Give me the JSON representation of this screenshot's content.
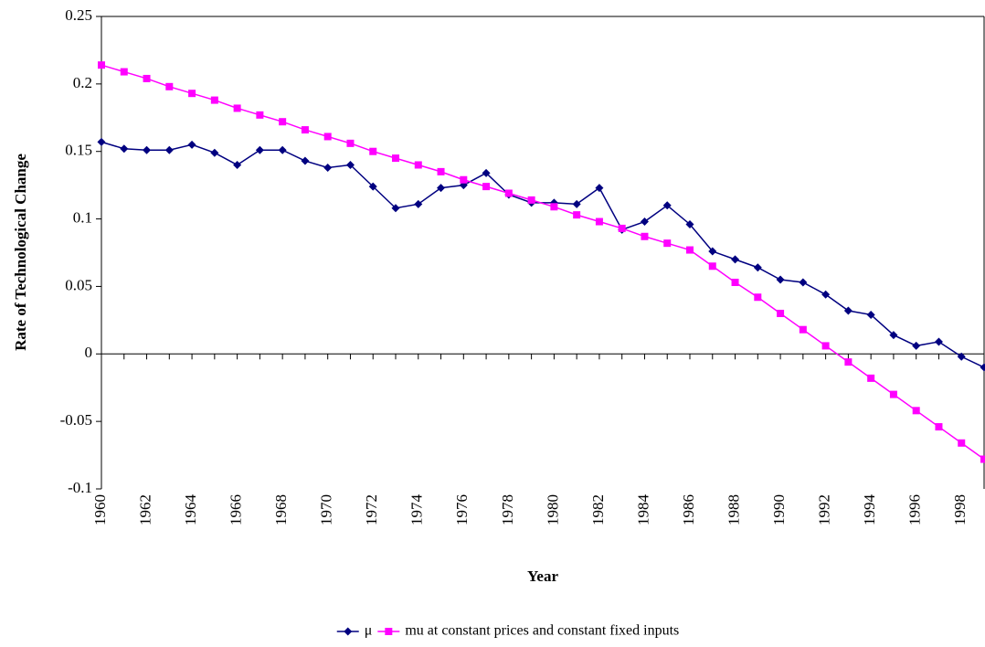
{
  "chart_data": {
    "type": "line",
    "y_label": "Rate of Technological Change",
    "x_label": "Year",
    "categories": [
      "1960",
      null,
      "1962",
      null,
      "1964",
      null,
      "1966",
      null,
      "1968",
      null,
      "1970",
      null,
      "1972",
      null,
      "1974",
      null,
      "1976",
      null,
      "1978",
      null,
      "1980",
      null,
      "1982",
      null,
      "1984",
      null,
      "1986",
      null,
      "1988",
      null,
      "1990",
      null,
      "1992",
      null,
      "1994",
      null,
      "1996",
      null,
      "1998",
      null
    ],
    "series": [
      {
        "name": "μ",
        "color": "#000080",
        "marker": "diamond",
        "values": [
          0.157,
          0.152,
          0.151,
          0.151,
          0.155,
          0.149,
          0.14,
          0.151,
          0.151,
          0.143,
          0.138,
          0.14,
          0.124,
          0.108,
          0.111,
          0.123,
          0.125,
          0.134,
          0.118,
          0.112,
          0.112,
          0.111,
          0.123,
          0.092,
          0.098,
          0.11,
          0.096,
          0.076,
          0.07,
          0.064,
          0.055,
          0.053,
          0.044,
          0.032,
          0.029,
          0.014,
          0.006,
          0.009,
          -0.002,
          -0.01
        ]
      },
      {
        "name": "mu at constant prices and constant fixed inputs",
        "color": "#ff00ff",
        "marker": "square",
        "values": [
          0.214,
          0.209,
          0.204,
          0.198,
          0.193,
          0.188,
          0.182,
          0.177,
          0.172,
          0.166,
          0.161,
          0.156,
          0.15,
          0.145,
          0.14,
          0.135,
          0.129,
          0.124,
          0.119,
          0.114,
          0.109,
          0.103,
          0.098,
          0.093,
          0.087,
          0.082,
          0.077,
          0.065,
          0.053,
          0.042,
          0.03,
          0.018,
          0.006,
          -0.006,
          -0.018,
          -0.03,
          -0.042,
          -0.054,
          -0.066,
          -0.078
        ]
      }
    ],
    "ylim": [
      -0.1,
      0.25
    ],
    "yticks": [
      -0.1,
      -0.05,
      0,
      0.05,
      0.1,
      0.15,
      0.2,
      0.25
    ],
    "grid": false,
    "legend": "bottom"
  }
}
